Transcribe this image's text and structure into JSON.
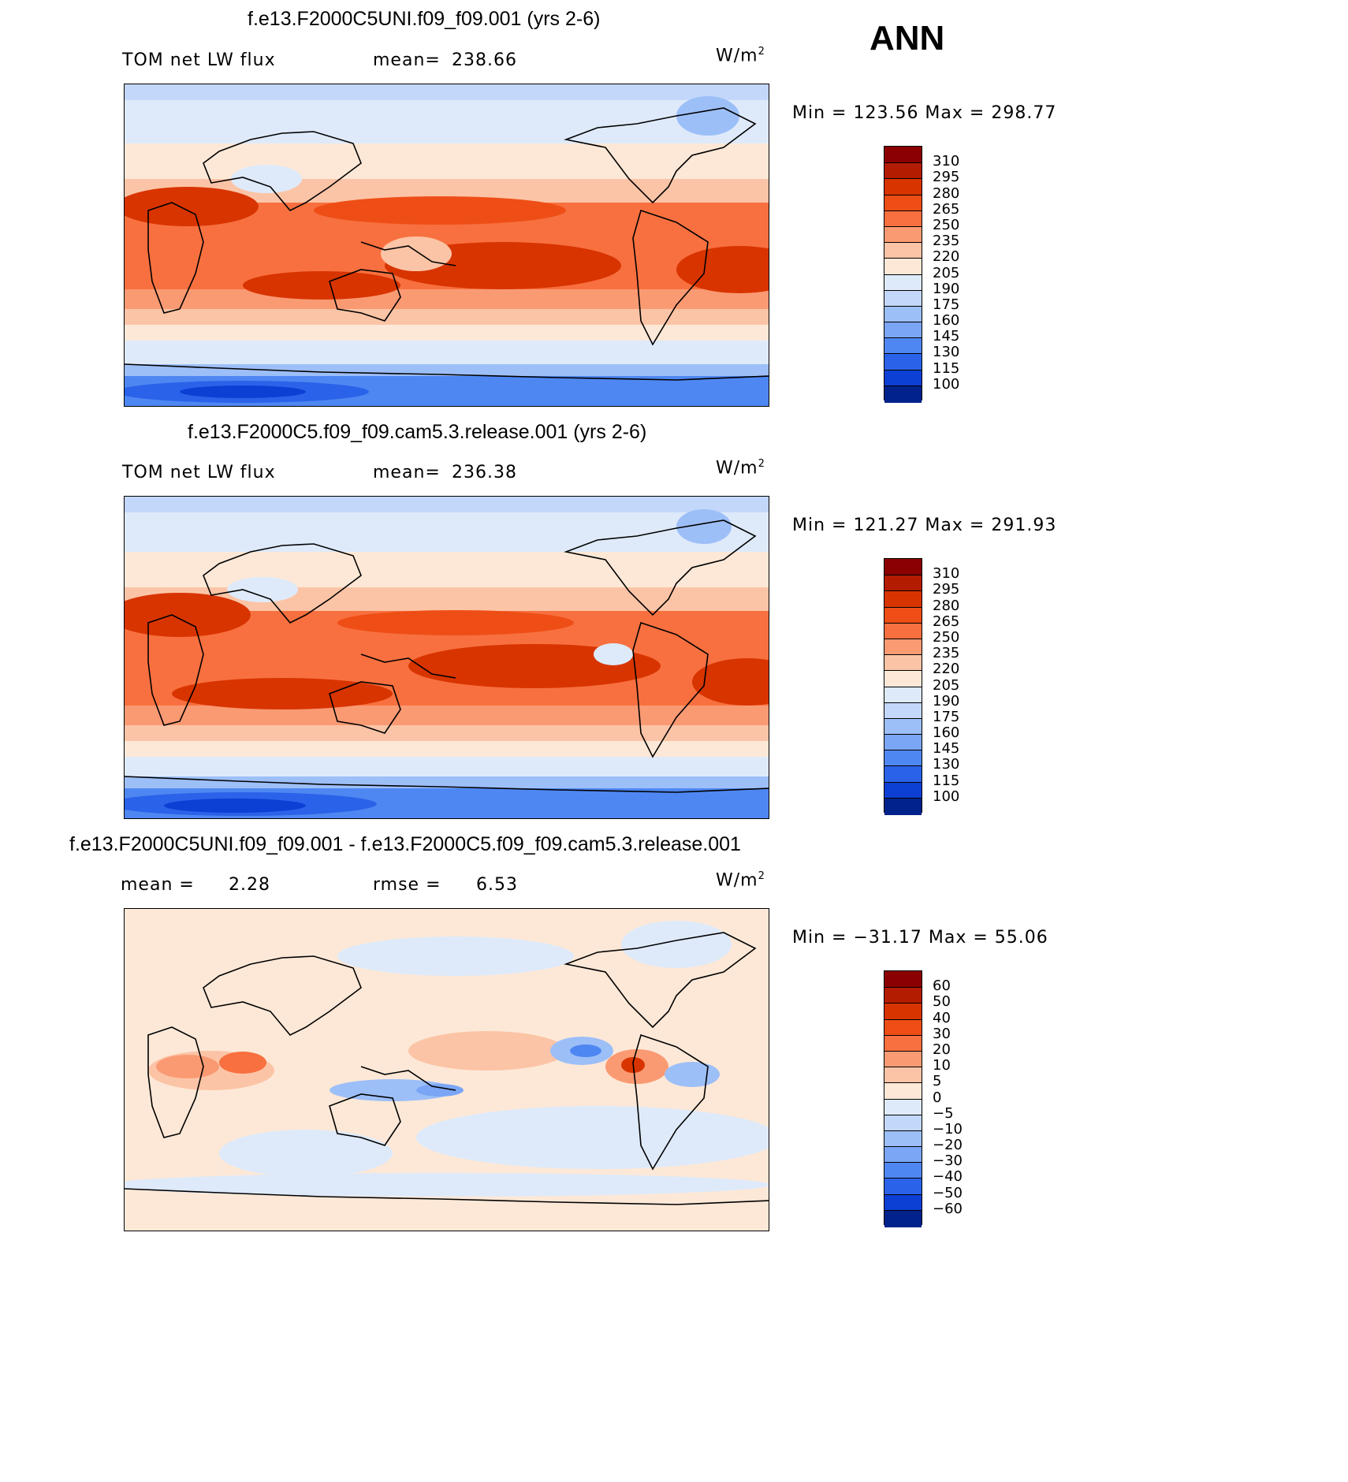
{
  "season": "ANN",
  "units_base": "W/m",
  "units_exp": "2",
  "panels": [
    {
      "title": "f.e13.F2000C5UNI.f09_f09.001 (yrs 2-6)",
      "left_label": "TOM net LW flux",
      "stat1_label": "mean=",
      "stat1_value": "238.66",
      "minmax": "Min = 123.56 Max = 298.77",
      "colorbar": {
        "labels": [
          "310",
          "295",
          "280",
          "265",
          "250",
          "235",
          "220",
          "205",
          "190",
          "175",
          "160",
          "145",
          "130",
          "115",
          "100"
        ],
        "colors": [
          "#8b0000",
          "#b31c00",
          "#d83400",
          "#ee4e16",
          "#f8703f",
          "#fa9a73",
          "#fcc4a6",
          "#fde8d7",
          "#deeafa",
          "#c3d7fa",
          "#9dbff8",
          "#7ba6f6",
          "#4f87f2",
          "#2a62e9",
          "#0c3fd3",
          "#00228a"
        ]
      }
    },
    {
      "title": "f.e13.F2000C5.f09_f09.cam5.3.release.001 (yrs 2-6)",
      "left_label": "TOM net LW flux",
      "stat1_label": "mean=",
      "stat1_value": "236.38",
      "minmax": "Min = 121.27 Max = 291.93",
      "colorbar": {
        "labels": [
          "310",
          "295",
          "280",
          "265",
          "250",
          "235",
          "220",
          "205",
          "190",
          "175",
          "160",
          "145",
          "130",
          "115",
          "100"
        ],
        "colors": [
          "#8b0000",
          "#b31c00",
          "#d83400",
          "#ee4e16",
          "#f8703f",
          "#fa9a73",
          "#fcc4a6",
          "#fde8d7",
          "#deeafa",
          "#c3d7fa",
          "#9dbff8",
          "#7ba6f6",
          "#4f87f2",
          "#2a62e9",
          "#0c3fd3",
          "#00228a"
        ]
      }
    },
    {
      "title": "f.e13.F2000C5UNI.f09_f09.001 - f.e13.F2000C5.f09_f09.cam5.3.release.001",
      "stat1_label": "mean =",
      "stat1_value": "2.28",
      "stat2_label": "rmse =",
      "stat2_value": "6.53",
      "minmax": "Min = −31.17 Max =  55.06",
      "colorbar": {
        "labels": [
          "60",
          "50",
          "40",
          "30",
          "20",
          "10",
          "5",
          "0",
          "−5",
          "−10",
          "−20",
          "−30",
          "−40",
          "−50",
          "−60"
        ],
        "colors": [
          "#8b0000",
          "#b31c00",
          "#d83400",
          "#ee4e16",
          "#f8703f",
          "#fa9a73",
          "#fcc4a6",
          "#fde8d7",
          "#deeafa",
          "#c3d7fa",
          "#9dbff8",
          "#7ba6f6",
          "#4f87f2",
          "#2a62e9",
          "#0c3fd3",
          "#00228a"
        ]
      }
    }
  ],
  "chart_data": [
    {
      "type": "heatmap",
      "title": "f.e13.F2000C5UNI.f09_f09.001 (yrs 2-6)",
      "variable": "TOM net LW flux",
      "units": "W/m2",
      "mean": 238.66,
      "min": 123.56,
      "max": 298.77,
      "contour_levels": [
        100,
        115,
        130,
        145,
        160,
        175,
        190,
        205,
        220,
        235,
        250,
        265,
        280,
        295,
        310
      ]
    },
    {
      "type": "heatmap",
      "title": "f.e13.F2000C5.f09_f09.cam5.3.release.001 (yrs 2-6)",
      "variable": "TOM net LW flux",
      "units": "W/m2",
      "mean": 236.38,
      "min": 121.27,
      "max": 291.93,
      "contour_levels": [
        100,
        115,
        130,
        145,
        160,
        175,
        190,
        205,
        220,
        235,
        250,
        265,
        280,
        295,
        310
      ]
    },
    {
      "type": "heatmap",
      "title": "f.e13.F2000C5UNI.f09_f09.001 - f.e13.F2000C5.f09_f09.cam5.3.release.001",
      "units": "W/m2",
      "mean": 2.28,
      "rmse": 6.53,
      "min": -31.17,
      "max": 55.06,
      "contour_levels": [
        -60,
        -50,
        -40,
        -30,
        -20,
        -10,
        -5,
        0,
        5,
        10,
        20,
        30,
        40,
        50,
        60
      ]
    }
  ]
}
